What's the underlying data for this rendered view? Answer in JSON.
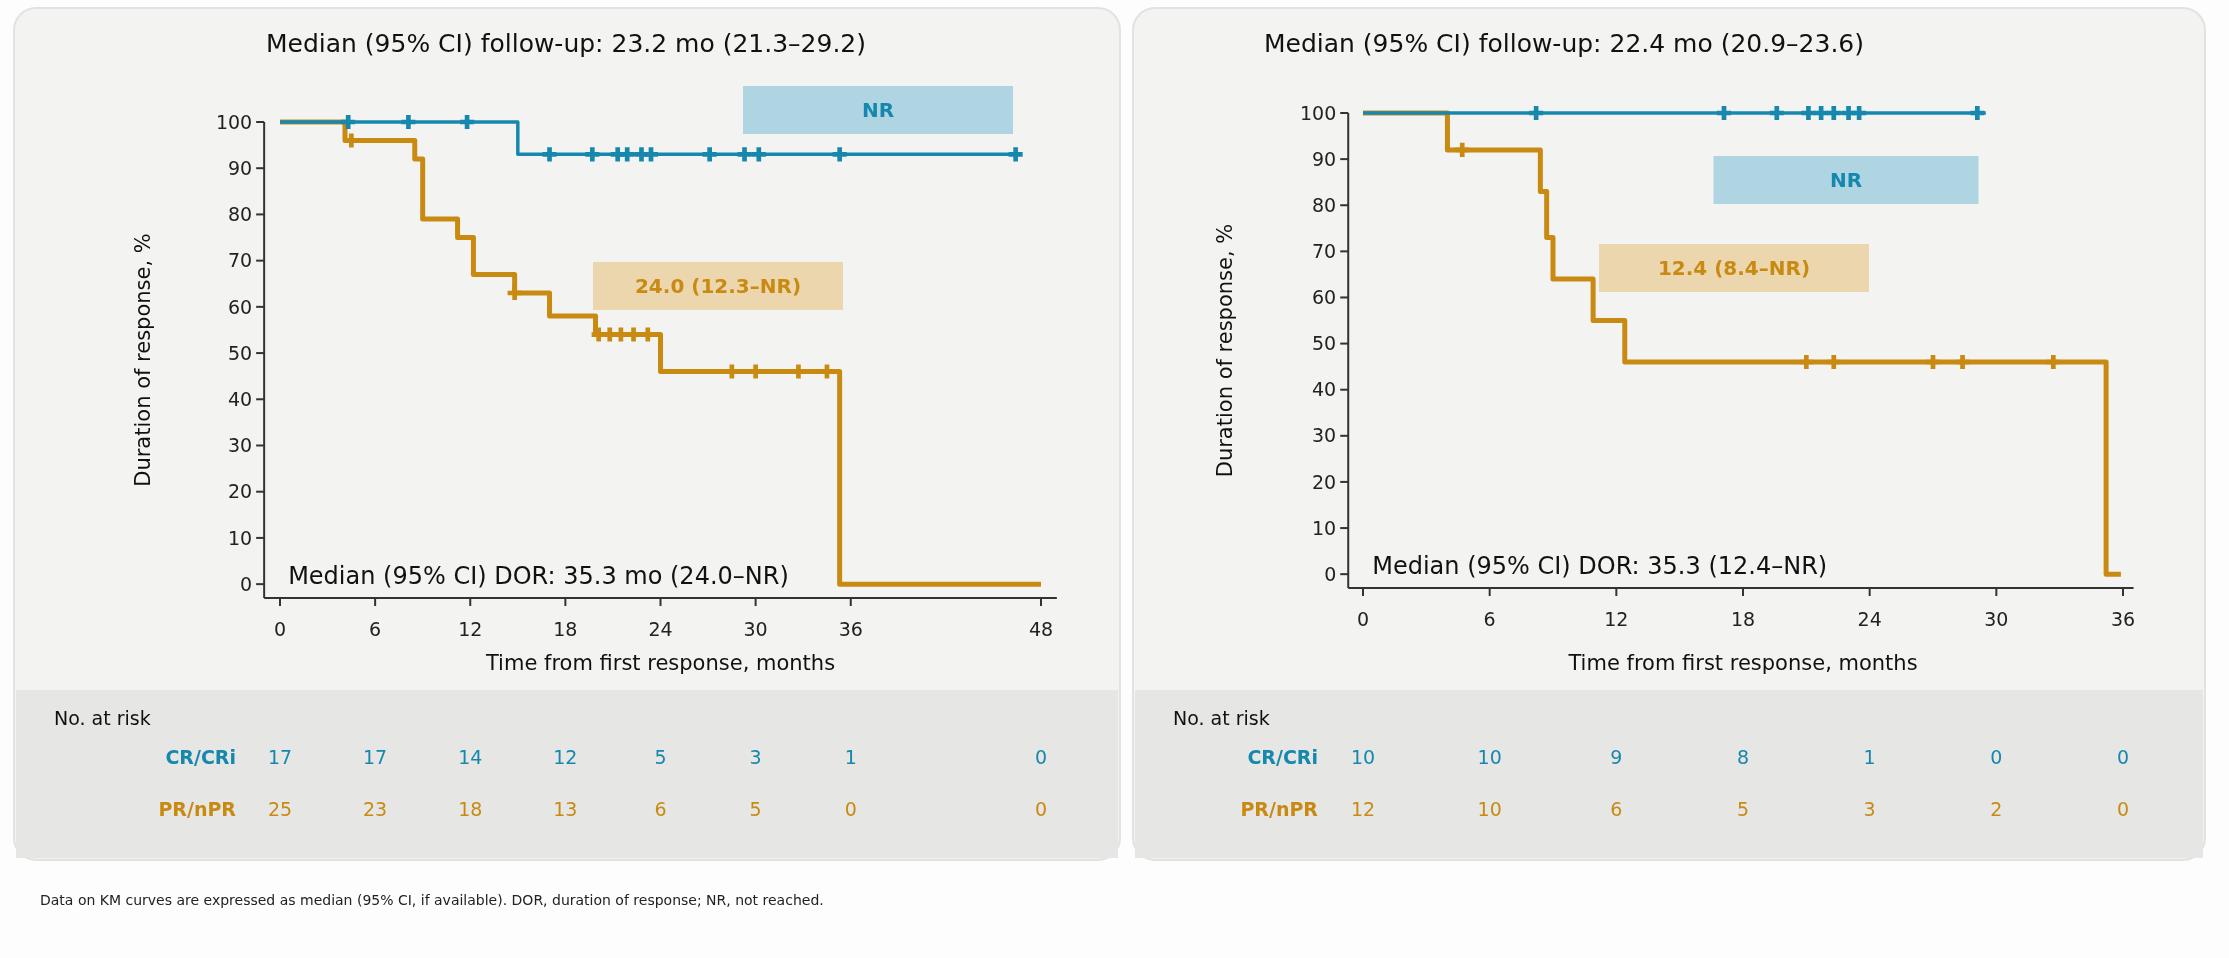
{
  "chart_data": [
    {
      "type": "step",
      "title": "Median (95% CI) follow-up: 23.2 mo (21.3–29.2)",
      "xlabel": "Time from first response, months",
      "ylabel": "Duration of response, %",
      "xlim": [
        -1,
        49
      ],
      "xticks": [
        0,
        6,
        12,
        18,
        24,
        30,
        36,
        48
      ],
      "ylim": [
        -3,
        100
      ],
      "yticks": [
        0,
        10,
        20,
        30,
        40,
        50,
        60,
        70,
        80,
        90,
        100
      ],
      "series": [
        {
          "name": "CR/CRi",
          "type": "step",
          "color": "#1788ad",
          "x": [
            0,
            15,
            46.4
          ],
          "values": [
            100,
            93,
            93
          ]
        },
        {
          "name": "PR/nPR",
          "type": "step",
          "color": "#c98a12",
          "x": [
            0,
            4.1,
            8.5,
            9.0,
            11.2,
            12.2,
            14.8,
            17.0,
            19.9,
            24.0,
            35.3,
            48
          ],
          "values": [
            100,
            96,
            92,
            79,
            75,
            67,
            63,
            58,
            54,
            46,
            0,
            0
          ]
        },
        {
          "type": "scatter",
          "marker": "cross",
          "color": "#1788ad",
          "x": [
            4.3,
            8.1,
            11.8,
            17.0,
            19.7,
            21.3,
            21.9,
            22.8,
            23.4,
            27.1,
            29.3,
            30.2,
            35.3,
            46.4
          ],
          "values": [
            100,
            100,
            100,
            93,
            93,
            93,
            93,
            93,
            93,
            93,
            93,
            93,
            93,
            93
          ]
        },
        {
          "type": "scatter",
          "marker": "cross",
          "color": "#c98a12",
          "x": [
            4.5,
            14.8,
            20.1,
            20.8,
            21.5,
            22.3,
            23.2,
            28.5,
            30.0,
            32.7,
            34.5
          ],
          "values": [
            96,
            63,
            54,
            54,
            54,
            54,
            54,
            46,
            46,
            46,
            46
          ]
        }
      ],
      "annotations": [
        "NR",
        "24.0 (12.3–NR)",
        "Median (95% CI) DOR: 35.3 mo (24.0–NR)",
        "No. at risk",
        "17",
        "17",
        "14",
        "12",
        "5",
        "3",
        "1",
        "0",
        "25",
        "23",
        "18",
        "13",
        "6",
        "5",
        "0",
        "0"
      ]
    },
    {
      "type": "step",
      "title": "Median (95% CI) follow-up: 22.4 mo (20.9–23.6)",
      "xlabel": "Time from first response, months",
      "ylabel": "Duration of response, %",
      "xlim": [
        -0.7,
        36.5
      ],
      "xticks": [
        0,
        6,
        12,
        18,
        24,
        30,
        36
      ],
      "ylim": [
        -3,
        100
      ],
      "yticks": [
        0,
        10,
        20,
        30,
        40,
        50,
        60,
        70,
        80,
        90,
        100
      ],
      "series": [
        {
          "name": "CR/CRi",
          "type": "step",
          "color": "#1788ad",
          "x": [
            0,
            29.5
          ],
          "values": [
            100,
            100
          ]
        },
        {
          "name": "PR/nPR",
          "type": "step",
          "color": "#c98a12",
          "x": [
            0,
            4.0,
            8.4,
            8.7,
            9.0,
            10.9,
            12.4,
            35.2,
            35.9
          ],
          "values": [
            100,
            92,
            83,
            73,
            64,
            55,
            46,
            0,
            0
          ]
        },
        {
          "type": "scatter",
          "marker": "cross",
          "color": "#1788ad",
          "x": [
            8.2,
            17.1,
            19.6,
            21.1,
            21.7,
            22.3,
            23.0,
            23.5,
            29.1
          ],
          "values": [
            100,
            100,
            100,
            100,
            100,
            100,
            100,
            100,
            100
          ]
        },
        {
          "type": "scatter",
          "marker": "cross",
          "color": "#c98a12",
          "x": [
            4.7,
            21.0,
            22.3,
            27.0,
            28.4,
            32.7
          ],
          "values": [
            92,
            46,
            46,
            46,
            46,
            46
          ]
        }
      ],
      "annotations": [
        "NR",
        "12.4 (8.4–NR)",
        "Median (95% CI) DOR: 35.3 (12.4–NR)",
        "No. at risk",
        "10",
        "10",
        "9",
        "8",
        "1",
        "0",
        "0",
        "12",
        "10",
        "6",
        "5",
        "3",
        "2",
        "0"
      ]
    },
    {
      "type": "other",
      "annotations": [
        "Data on KM curves are expressed as median (95% CI, if available). DOR, duration of response; NR, not reached."
      ]
    }
  ]
}
